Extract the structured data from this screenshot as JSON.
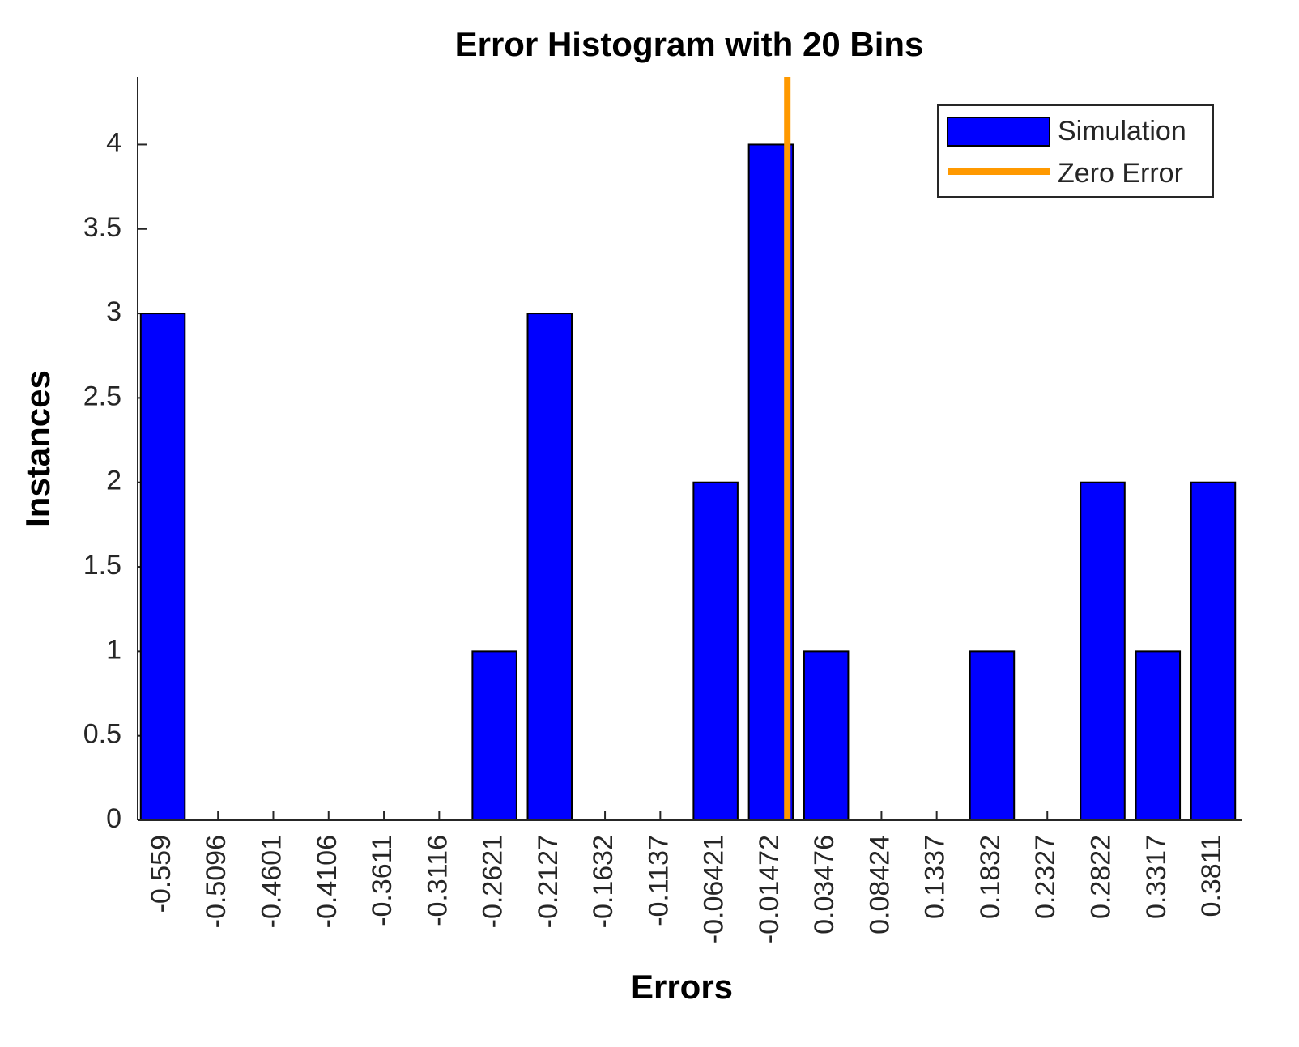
{
  "chart_data": {
    "type": "histogram",
    "title": "Error Histogram with 20 Bins",
    "xlabel": "Errors",
    "ylabel": "Instances",
    "x": [
      -0.559,
      -0.5096,
      -0.4601,
      -0.4106,
      -0.3611,
      -0.3116,
      -0.2621,
      -0.2127,
      -0.1632,
      -0.1137,
      -0.06421,
      -0.01472,
      0.03476,
      0.08424,
      0.1337,
      0.1832,
      0.2327,
      0.2822,
      0.3317,
      0.3811
    ],
    "series": [
      {
        "name": "Simulation",
        "color": "#0000ff",
        "values": [
          3,
          0,
          0,
          0,
          0,
          0,
          1,
          3,
          0,
          0,
          2,
          4,
          1,
          0,
          0,
          1,
          0,
          2,
          1,
          2
        ]
      }
    ],
    "zero_line": {
      "name": "Zero Error",
      "color": "#ff9900",
      "x": 0
    },
    "xlim": [
      -0.5815,
      0.4065
    ],
    "ylim": [
      0,
      4.4
    ],
    "yticks": [
      0,
      0.5,
      1,
      1.5,
      2,
      2.5,
      3,
      3.5,
      4
    ],
    "legend": "northeast"
  }
}
